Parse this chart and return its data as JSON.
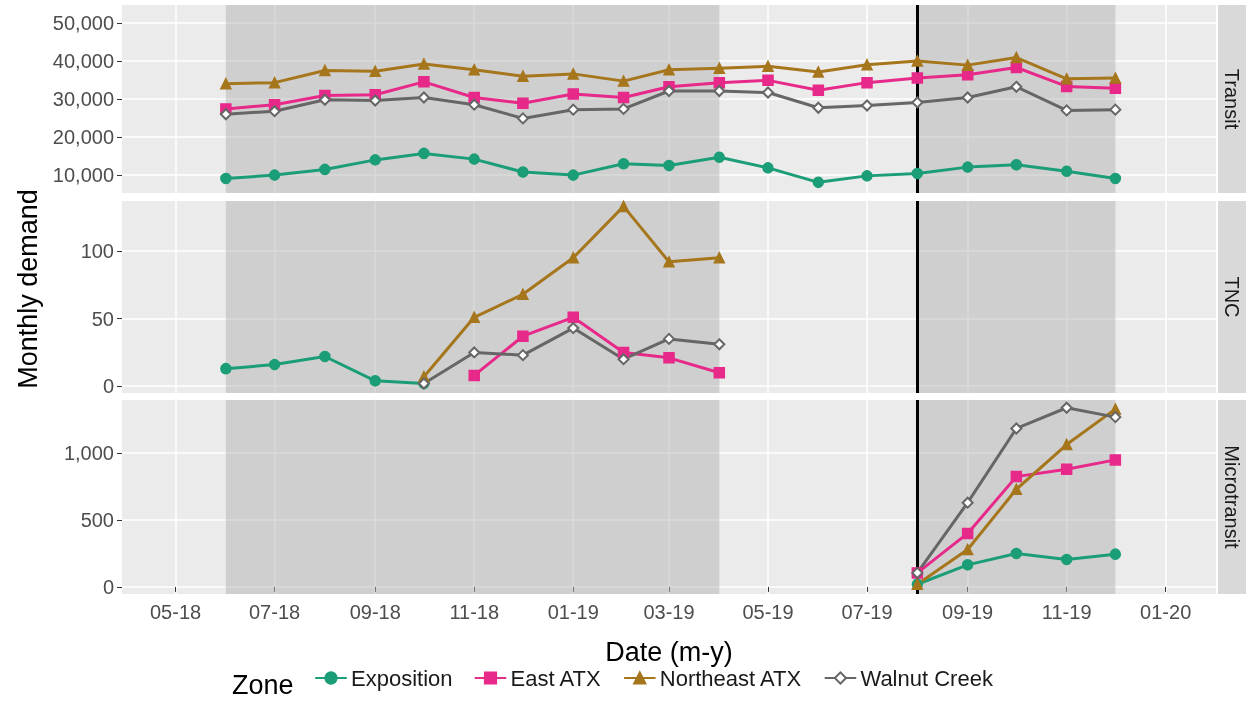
{
  "chart_data": [
    {
      "type": "line",
      "title": "Transit",
      "x": [
        "2018-06",
        "2018-07",
        "2018-08",
        "2018-09",
        "2018-10",
        "2018-11",
        "2018-12",
        "2019-01",
        "2019-02",
        "2019-03",
        "2019-04",
        "2019-05",
        "2019-06",
        "2019-07",
        "2019-08",
        "2019-09",
        "2019-10",
        "2019-11",
        "2019-12"
      ],
      "series": [
        {
          "color": "#1b9e77",
          "marker": "circle",
          "values": [
            9100,
            10000,
            11500,
            14000,
            15700,
            14200,
            10800,
            10000,
            13000,
            12500,
            14700,
            11900,
            8100,
            9800,
            10400,
            12100,
            12700,
            11000,
            9100
          ]
        },
        {
          "color": "#e7298a",
          "marker": "square",
          "values": [
            27400,
            28500,
            30900,
            31100,
            34500,
            30400,
            28900,
            31300,
            30400,
            33200,
            34300,
            34900,
            32300,
            34300,
            35500,
            36400,
            38300,
            33300,
            32800
          ]
        },
        {
          "color": "#a6761d",
          "marker": "triangle",
          "values": [
            34000,
            34300,
            37500,
            37300,
            39200,
            37700,
            36000,
            36600,
            34700,
            37700,
            38100,
            38600,
            37100,
            39000,
            40000,
            38900,
            40900,
            35300,
            35500
          ]
        },
        {
          "color": "#666666",
          "marker": "diamond",
          "values": [
            26000,
            26800,
            29800,
            29600,
            30400,
            28500,
            24900,
            27200,
            27400,
            32100,
            32100,
            31700,
            27700,
            28300,
            29100,
            30400,
            33200,
            27000,
            27200
          ]
        }
      ],
      "xlim": [
        "2018-03-29",
        "2020-02-01"
      ],
      "xticks": [
        "2018-05",
        "2018-07",
        "2018-09",
        "2018-11",
        "2019-01",
        "2019-03",
        "2019-05",
        "2019-07",
        "2019-09",
        "2019-11",
        "2020-01"
      ],
      "ylim": [
        5300,
        54700
      ],
      "yticks": [
        {
          "value": 10000,
          "label": "10,000"
        },
        {
          "value": 20000,
          "label": "20,000"
        },
        {
          "value": 30000,
          "label": "30,000"
        },
        {
          "value": 40000,
          "label": "40,000"
        },
        {
          "value": 50000,
          "label": "50,000"
        }
      ],
      "bands": [
        {
          "axis": "x",
          "from": "2018-06",
          "to": "2019-04",
          "color": "#b3b3b3"
        },
        {
          "axis": "x",
          "from": "2019-08",
          "to": "2019-12",
          "color": "#b3b3b3"
        }
      ],
      "ref_lines": [
        {
          "axis": "x",
          "value": "2019-08",
          "color": "#000000"
        }
      ],
      "grid": true,
      "tick_labels": "y",
      "line_style": "solid"
    },
    {
      "type": "line",
      "title": "TNC",
      "ylabel": "Monthly demand",
      "x": [
        "2018-06",
        "2018-07",
        "2018-08",
        "2018-09",
        "2018-10",
        "2018-11",
        "2018-12",
        "2019-01",
        "2019-02",
        "2019-03",
        "2019-04"
      ],
      "series": [
        {
          "color": "#1b9e77",
          "marker": "circle",
          "values": [
            13,
            16,
            22,
            4,
            2,
            null,
            null,
            null,
            null,
            null,
            null
          ]
        },
        {
          "color": "#e7298a",
          "marker": "square",
          "values": [
            null,
            null,
            null,
            null,
            null,
            8,
            37,
            51,
            25,
            21,
            10
          ]
        },
        {
          "color": "#a6761d",
          "marker": "triangle",
          "values": [
            null,
            null,
            null,
            null,
            7,
            51,
            68,
            95,
            133,
            92,
            95
          ]
        },
        {
          "color": "#666666",
          "marker": "diamond",
          "values": [
            null,
            null,
            null,
            null,
            2,
            25,
            23,
            43,
            20,
            35,
            31
          ]
        }
      ],
      "xlim": [
        "2018-03-29",
        "2020-02-01"
      ],
      "xticks": [
        "2018-05",
        "2018-07",
        "2018-09",
        "2018-11",
        "2019-01",
        "2019-03",
        "2019-05",
        "2019-07",
        "2019-09",
        "2019-11",
        "2020-01"
      ],
      "ylim": [
        -5,
        137
      ],
      "yticks": [
        0,
        50,
        100
      ],
      "bands": [
        {
          "axis": "x",
          "from": "2018-06",
          "to": "2019-04",
          "color": "#b3b3b3"
        },
        {
          "axis": "x",
          "from": "2019-08",
          "to": "2019-12",
          "color": "#b3b3b3"
        }
      ],
      "ref_lines": [
        {
          "axis": "x",
          "value": "2019-08",
          "color": "#000000"
        }
      ],
      "grid": true,
      "tick_labels": "y",
      "line_style": "solid"
    },
    {
      "type": "line",
      "title": "Microtransit",
      "xlabel": "Date (m-y)",
      "legend_title": "Zone",
      "legend": "bottom",
      "x": [
        "2019-08",
        "2019-09",
        "2019-10",
        "2019-11",
        "2019-12"
      ],
      "series": [
        {
          "name": "Exposition",
          "color": "#1b9e77",
          "marker": "circle",
          "values": [
            20,
            165,
            250,
            205,
            245
          ]
        },
        {
          "name": "East ATX",
          "color": "#e7298a",
          "marker": "square",
          "values": [
            105,
            400,
            825,
            880,
            950
          ]
        },
        {
          "name": "Northeast ATX",
          "color": "#a6761d",
          "marker": "triangle",
          "values": [
            20,
            280,
            730,
            1065,
            1330
          ]
        },
        {
          "name": "Walnut Creek",
          "color": "#666666",
          "marker": "diamond",
          "values": [
            105,
            630,
            1185,
            1340,
            1270
          ]
        }
      ],
      "xlim": [
        "2018-03-29",
        "2020-02-01"
      ],
      "xticks": [
        {
          "value": "2018-05",
          "label": "05-18"
        },
        {
          "value": "2018-07",
          "label": "07-18"
        },
        {
          "value": "2018-09",
          "label": "09-18"
        },
        {
          "value": "2018-11",
          "label": "11-18"
        },
        {
          "value": "2019-01",
          "label": "01-19"
        },
        {
          "value": "2019-03",
          "label": "03-19"
        },
        {
          "value": "2019-05",
          "label": "05-19"
        },
        {
          "value": "2019-07",
          "label": "07-19"
        },
        {
          "value": "2019-09",
          "label": "09-19"
        },
        {
          "value": "2019-11",
          "label": "11-19"
        },
        {
          "value": "2020-01",
          "label": "01-20"
        }
      ],
      "ylim": [
        -53,
        1398
      ],
      "yticks": [
        0,
        500,
        {
          "value": 1000,
          "label": "1,000"
        }
      ],
      "bands": [
        {
          "axis": "x",
          "from": "2018-06",
          "to": "2019-04",
          "color": "#b3b3b3"
        },
        {
          "axis": "x",
          "from": "2019-08",
          "to": "2019-12",
          "color": "#b3b3b3"
        }
      ],
      "ref_lines": [
        {
          "axis": "x",
          "value": "2019-08",
          "color": "#000000"
        }
      ],
      "grid": true,
      "line_style": "solid"
    }
  ]
}
